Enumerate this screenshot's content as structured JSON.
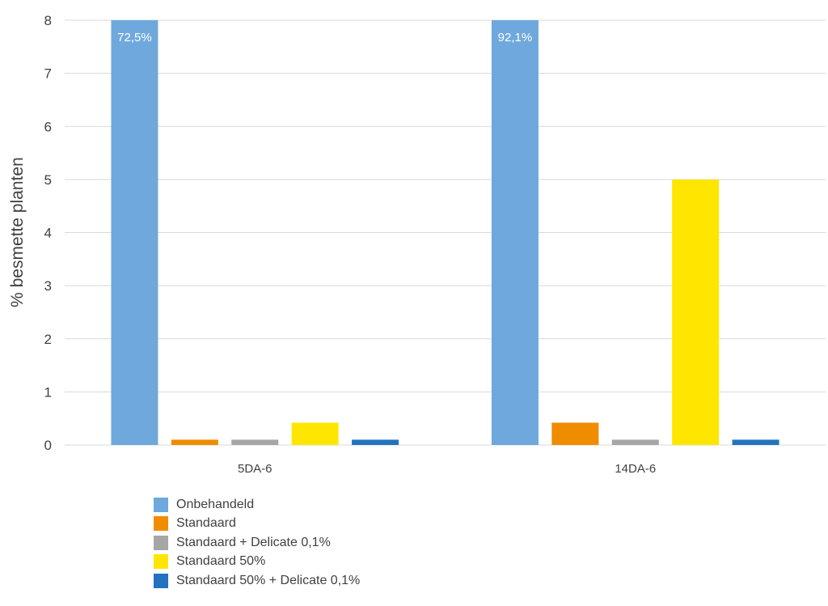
{
  "chart_data": {
    "type": "bar",
    "title": "",
    "xlabel": "",
    "ylabel": "% besmette planten",
    "ylim": [
      0,
      8
    ],
    "yticks": [
      0,
      1,
      2,
      3,
      4,
      5,
      6,
      7,
      8
    ],
    "grid": true,
    "legend_position": "bottom-left",
    "categories": [
      "5DA-6",
      "14DA-6"
    ],
    "series": [
      {
        "name": "Onbehandeld",
        "color": "#6FA8DC",
        "values": [
          72.5,
          92.1
        ],
        "data_labels": [
          "72,5%",
          "92,1%"
        ]
      },
      {
        "name": "Standaard",
        "color": "#F08C00",
        "values": [
          0.1,
          0.42
        ],
        "data_labels": [
          "",
          ""
        ]
      },
      {
        "name": "Standaard + Delicate 0,1%",
        "color": "#A6A6A6",
        "values": [
          0.1,
          0.1
        ],
        "data_labels": [
          "",
          ""
        ]
      },
      {
        "name": "Standaard 50%",
        "color": "#FFE600",
        "values": [
          0.42,
          5.0
        ],
        "data_labels": [
          "",
          ""
        ]
      },
      {
        "name": "Standaard 50% + Delicate 0,1%",
        "color": "#2372C0",
        "values": [
          0.1,
          0.1
        ],
        "data_labels": [
          "",
          ""
        ]
      }
    ]
  }
}
